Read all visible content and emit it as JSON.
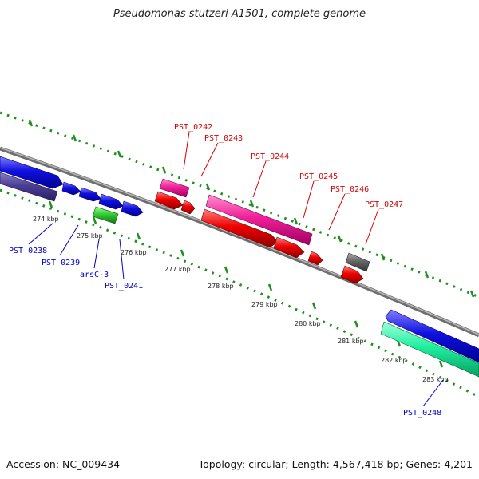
{
  "title": "Pseudomonas stutzeri A1501, complete genome",
  "accession_text": "Accession: NC_009434",
  "summary_text": "Topology: circular; Length: 4,567,418 bp; Genes: 4,201",
  "colors": {
    "backbone": "#8a8a8a",
    "dots": "#1f8f1f",
    "label_forward": "#d40000",
    "label_reverse": "#0000c8"
  },
  "ticks": [
    "274 kbp",
    "275 kbp",
    "276 kbp",
    "277 kbp",
    "278 kbp",
    "279 kbp",
    "280 kbp",
    "281 kbp",
    "282 kbp",
    "283 kbp"
  ],
  "labels_forward": [
    "PST_0242",
    "PST_0243",
    "PST_0244",
    "PST_0245",
    "PST_0246",
    "PST_0247"
  ],
  "labels_reverse": [
    "PST_0238",
    "PST_0239",
    "arsC-3",
    "PST_0241",
    "PST_0248"
  ],
  "gene_colors": {
    "blue": "#1010e0",
    "navy": "#4a3f95",
    "green": "#33cc33",
    "pink": "#f0209a",
    "red": "#ee0000",
    "grey": "#666666",
    "teal": "#20f0a0"
  }
}
